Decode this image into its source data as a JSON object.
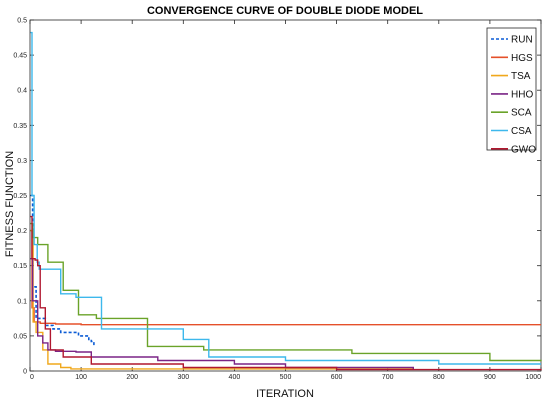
{
  "chart_data": {
    "type": "line",
    "title": "CONVERGENCE CURVE OF DOUBLE DIODE MODEL",
    "xlabel": "ITERATION",
    "ylabel": "FITNESS FUNCTION",
    "xlim": [
      0,
      1000
    ],
    "ylim": [
      0,
      0.5
    ],
    "xticks": [
      0,
      100,
      200,
      300,
      400,
      500,
      600,
      700,
      800,
      900,
      1000
    ],
    "yticks": [
      0,
      0.05,
      0.1,
      0.15,
      0.2,
      0.25,
      0.3,
      0.35,
      0.4,
      0.45,
      0.5
    ],
    "grid": false,
    "legend_position": "top-right",
    "series": [
      {
        "name": "RUN",
        "color": "#0b5cd5",
        "dashed": true,
        "x": [
          1,
          5,
          12,
          20,
          30,
          45,
          60,
          80,
          95,
          105,
          115,
          120,
          125
        ],
        "y": [
          0.25,
          0.12,
          0.075,
          0.075,
          0.065,
          0.06,
          0.055,
          0.055,
          0.05,
          0.05,
          0.045,
          0.042,
          0.035
        ]
      },
      {
        "name": "HGS",
        "color": "#e5502a",
        "dashed": false,
        "x": [
          1,
          4,
          8,
          20,
          50,
          100,
          1000
        ],
        "y": [
          0.2,
          0.09,
          0.07,
          0.068,
          0.067,
          0.066,
          0.066
        ]
      },
      {
        "name": "TSA",
        "color": "#f0a81c",
        "dashed": false,
        "x": [
          1,
          6,
          12,
          25,
          35,
          60,
          80,
          750
        ],
        "y": [
          0.2,
          0.07,
          0.055,
          0.03,
          0.01,
          0.005,
          0.003,
          0.003
        ]
      },
      {
        "name": "HHO",
        "color": "#7a2485",
        "dashed": false,
        "x": [
          1,
          5,
          15,
          25,
          35,
          50,
          90,
          120,
          250,
          400,
          500,
          750
        ],
        "y": [
          0.16,
          0.1,
          0.05,
          0.04,
          0.03,
          0.028,
          0.027,
          0.02,
          0.015,
          0.01,
          0.005,
          0.002
        ]
      },
      {
        "name": "SCA",
        "color": "#6aa329",
        "dashed": false,
        "x": [
          1,
          5,
          15,
          35,
          65,
          95,
          130,
          230,
          340,
          630,
          900,
          1000
        ],
        "y": [
          0.21,
          0.19,
          0.18,
          0.155,
          0.115,
          0.08,
          0.075,
          0.035,
          0.03,
          0.025,
          0.015,
          0.014
        ]
      },
      {
        "name": "CSA",
        "color": "#3db8ec",
        "dashed": false,
        "x": [
          1,
          4,
          8,
          14,
          18,
          45,
          60,
          90,
          140,
          300,
          350,
          500,
          800,
          1000
        ],
        "y": [
          0.482,
          0.25,
          0.18,
          0.155,
          0.145,
          0.145,
          0.11,
          0.105,
          0.06,
          0.045,
          0.02,
          0.015,
          0.01,
          0.01
        ]
      },
      {
        "name": "GWO",
        "color": "#b0172f",
        "dashed": false,
        "x": [
          1,
          4,
          10,
          15,
          20,
          30,
          40,
          65,
          120,
          300,
          600,
          1000
        ],
        "y": [
          0.22,
          0.16,
          0.158,
          0.15,
          0.09,
          0.06,
          0.03,
          0.02,
          0.01,
          0.005,
          0.002,
          0.001
        ]
      }
    ]
  }
}
